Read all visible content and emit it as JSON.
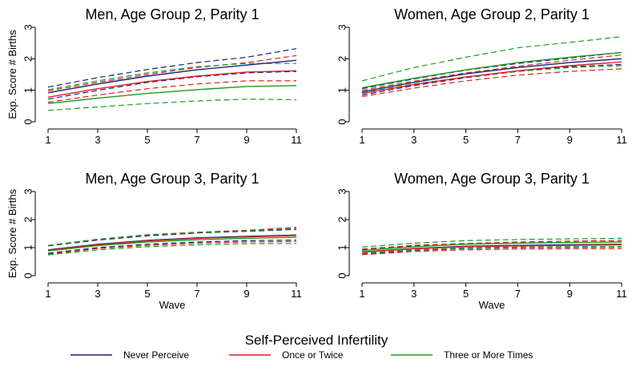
{
  "figure": {
    "legend_title": "Self-Perceived Infertility",
    "legend": [
      {
        "label": "Never Perceive",
        "color": "#1a237e"
      },
      {
        "label": "Once or Twice",
        "color": "#e02020"
      },
      {
        "label": "Three or More Times",
        "color": "#1aa01a"
      }
    ]
  },
  "chart_data": [
    {
      "type": "line",
      "title": "Men, Age Group 2, Parity 1",
      "ylabel": "Exp. Score # Births",
      "xlabel": "",
      "xticks": [
        1,
        3,
        5,
        7,
        9,
        11
      ],
      "yticks": [
        0,
        1,
        2,
        3
      ],
      "xlim": [
        1,
        11
      ],
      "ylim": [
        0,
        3
      ],
      "x": [
        1,
        3,
        5,
        7,
        9,
        11
      ],
      "series": [
        {
          "name": "Never Perceive",
          "color": "#1a237e",
          "values": [
            0.92,
            1.2,
            1.45,
            1.65,
            1.8,
            1.95
          ],
          "lower": [
            0.72,
            1.0,
            1.25,
            1.43,
            1.55,
            1.6
          ],
          "upper": [
            1.1,
            1.4,
            1.66,
            1.88,
            2.05,
            2.32
          ]
        },
        {
          "name": "Once or Twice",
          "color": "#e02020",
          "values": [
            0.78,
            1.05,
            1.28,
            1.45,
            1.58,
            1.62
          ],
          "lower": [
            0.62,
            0.85,
            1.05,
            1.2,
            1.3,
            1.3
          ],
          "upper": [
            0.98,
            1.25,
            1.5,
            1.72,
            1.88,
            2.1
          ]
        },
        {
          "name": "Three or More Times",
          "color": "#1aa01a",
          "values": [
            0.58,
            0.75,
            0.9,
            1.02,
            1.12,
            1.15
          ],
          "lower": [
            0.36,
            0.47,
            0.58,
            0.66,
            0.72,
            0.7
          ],
          "upper": [
            1.02,
            1.3,
            1.55,
            1.75,
            1.85,
            1.85
          ]
        }
      ]
    },
    {
      "type": "line",
      "title": "Women, Age Group 2, Parity 1",
      "ylabel": "",
      "xlabel": "",
      "xticks": [
        1,
        3,
        5,
        7,
        9,
        11
      ],
      "yticks": [
        0,
        1,
        2,
        3
      ],
      "xlim": [
        1,
        11
      ],
      "ylim": [
        0,
        3
      ],
      "x": [
        1,
        3,
        5,
        7,
        9,
        11
      ],
      "series": [
        {
          "name": "Never Perceive",
          "color": "#1a237e",
          "values": [
            0.95,
            1.25,
            1.52,
            1.72,
            1.88,
            2.0
          ],
          "lower": [
            0.85,
            1.15,
            1.4,
            1.6,
            1.75,
            1.82
          ],
          "upper": [
            1.05,
            1.36,
            1.64,
            1.85,
            2.02,
            2.2
          ]
        },
        {
          "name": "Once or Twice",
          "color": "#e02020",
          "values": [
            0.9,
            1.18,
            1.42,
            1.62,
            1.78,
            1.9
          ],
          "lower": [
            0.8,
            1.07,
            1.3,
            1.48,
            1.6,
            1.68
          ],
          "upper": [
            1.0,
            1.29,
            1.55,
            1.76,
            1.95,
            2.12
          ]
        },
        {
          "name": "Three or More Times",
          "color": "#1aa01a",
          "values": [
            1.08,
            1.38,
            1.65,
            1.88,
            2.05,
            2.2
          ],
          "lower": [
            0.92,
            1.2,
            1.42,
            1.6,
            1.72,
            1.78
          ],
          "upper": [
            1.3,
            1.72,
            2.05,
            2.35,
            2.52,
            2.7
          ]
        }
      ]
    },
    {
      "type": "line",
      "title": "Men, Age Group 3, Parity 1",
      "ylabel": "Exp. Score # Births",
      "xlabel": "Wave",
      "xticks": [
        1,
        3,
        5,
        7,
        9,
        11
      ],
      "yticks": [
        0,
        1,
        2,
        3
      ],
      "xlim": [
        1,
        11
      ],
      "ylim": [
        0,
        3
      ],
      "x": [
        1,
        3,
        5,
        7,
        9,
        11
      ],
      "series": [
        {
          "name": "Never Perceive",
          "color": "#1a237e",
          "values": [
            0.92,
            1.12,
            1.26,
            1.35,
            1.4,
            1.45
          ],
          "lower": [
            0.8,
            1.0,
            1.12,
            1.2,
            1.25,
            1.27
          ],
          "upper": [
            1.06,
            1.27,
            1.42,
            1.52,
            1.58,
            1.65
          ]
        },
        {
          "name": "Once or Twice",
          "color": "#e02020",
          "values": [
            0.9,
            1.1,
            1.24,
            1.33,
            1.38,
            1.43
          ],
          "lower": [
            0.77,
            0.97,
            1.08,
            1.16,
            1.2,
            1.22
          ],
          "upper": [
            1.07,
            1.3,
            1.46,
            1.55,
            1.62,
            1.72
          ]
        },
        {
          "name": "Three or More Times",
          "color": "#1aa01a",
          "values": [
            0.88,
            1.07,
            1.2,
            1.28,
            1.33,
            1.37
          ],
          "lower": [
            0.74,
            0.92,
            1.03,
            1.1,
            1.14,
            1.15
          ],
          "upper": [
            1.08,
            1.3,
            1.45,
            1.54,
            1.6,
            1.68
          ]
        }
      ]
    },
    {
      "type": "line",
      "title": "Women, Age Group 3, Parity 1",
      "ylabel": "",
      "xlabel": "Wave",
      "xticks": [
        1,
        3,
        5,
        7,
        9,
        11
      ],
      "yticks": [
        0,
        1,
        2,
        3
      ],
      "xlim": [
        1,
        11
      ],
      "ylim": [
        0,
        3
      ],
      "x": [
        1,
        3,
        5,
        7,
        9,
        11
      ],
      "series": [
        {
          "name": "Never Perceive",
          "color": "#1a237e",
          "values": [
            0.85,
            0.97,
            1.05,
            1.08,
            1.1,
            1.12
          ],
          "lower": [
            0.78,
            0.9,
            0.97,
            1.0,
            1.01,
            1.02
          ],
          "upper": [
            0.94,
            1.06,
            1.13,
            1.17,
            1.19,
            1.21
          ]
        },
        {
          "name": "Once or Twice",
          "color": "#e02020",
          "values": [
            0.84,
            0.96,
            1.03,
            1.06,
            1.08,
            1.1
          ],
          "lower": [
            0.75,
            0.86,
            0.92,
            0.95,
            0.96,
            0.96
          ],
          "upper": [
            0.95,
            1.08,
            1.15,
            1.2,
            1.23,
            1.26
          ]
        },
        {
          "name": "Three or More Times",
          "color": "#1aa01a",
          "values": [
            0.9,
            1.03,
            1.12,
            1.16,
            1.18,
            1.2
          ],
          "lower": [
            0.8,
            0.92,
            0.99,
            1.02,
            1.03,
            1.03
          ],
          "upper": [
            1.02,
            1.16,
            1.25,
            1.29,
            1.31,
            1.33
          ]
        }
      ]
    }
  ]
}
